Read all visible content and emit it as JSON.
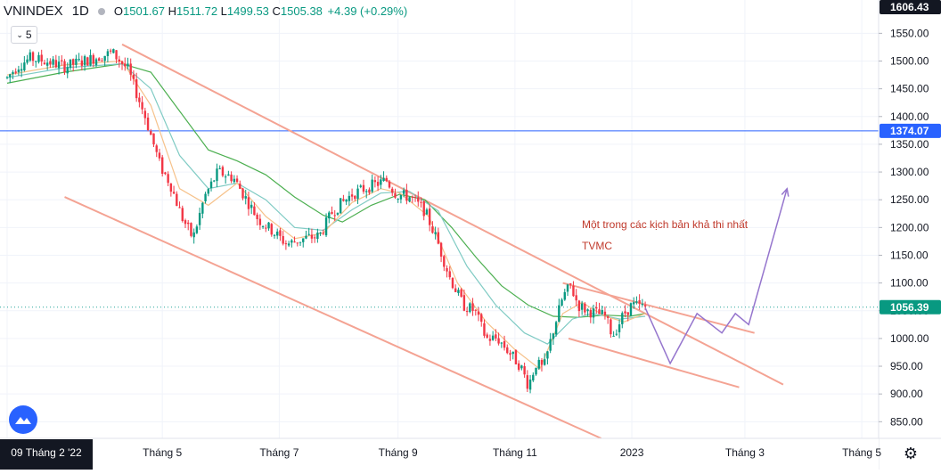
{
  "header": {
    "symbol": "VNINDEX",
    "timeframe": "1D",
    "open_label": "O",
    "open": "1501.67",
    "high_label": "H",
    "high": "1511.72",
    "low_label": "L",
    "low": "1499.53",
    "close_label": "C",
    "close": "1505.38",
    "change": "+4.39 (+0.29%)"
  },
  "indicator_count": "5",
  "annotations": {
    "scenario_text": "Một trong các kịch bản khả thi nhất",
    "author": "TVMC"
  },
  "colors": {
    "up": "#089981",
    "down": "#f23645",
    "channel": "#f4a393",
    "horizontal": "#2962ff",
    "price_dotted": "#26a69a",
    "ma_short": "#f6c28b",
    "ma_mid": "#80cbc4",
    "ma_long": "#4caf50",
    "projection": "#9575cd"
  },
  "chart_data": {
    "type": "candlestick",
    "title": "VNINDEX 1D",
    "y_axis": {
      "min": 820,
      "max": 1610,
      "ticks": [
        850,
        900,
        950,
        1000,
        1050,
        1100,
        1150,
        1200,
        1250,
        1300,
        1350,
        1400,
        1450,
        1500,
        1550
      ],
      "tick_labels": [
        "850.00",
        "900.00",
        "950.00",
        "1000.00",
        "1050.00",
        "1100.00",
        "1150.00",
        "1200.00",
        "1250.00",
        "1300.00",
        "1350.00",
        "1400.00",
        "1450.00",
        "1500.00",
        "1550.00"
      ],
      "price_labels": [
        {
          "value": 1606.43,
          "label": "1606.43",
          "style": "top"
        },
        {
          "value": 1374.07,
          "label": "1374.07",
          "style": "horizontal"
        },
        {
          "value": 1056.39,
          "label": "1056.39",
          "style": "last"
        }
      ]
    },
    "x_axis": {
      "labels": [
        "09 Tháng 2 '22",
        "Tháng 5",
        "Tháng 7",
        "Tháng 9",
        "Tháng 11",
        "2023",
        "Tháng 3",
        "Tháng 5"
      ],
      "label_days": [
        0,
        81,
        142,
        204,
        265,
        326,
        385,
        446
      ],
      "range_days": [
        0,
        452
      ]
    },
    "price_path": [
      [
        0,
        1470
      ],
      [
        5,
        1490
      ],
      [
        12,
        1505
      ],
      [
        20,
        1500
      ],
      [
        30,
        1490
      ],
      [
        42,
        1502
      ],
      [
        55,
        1515
      ],
      [
        63,
        1485
      ],
      [
        72,
        1400
      ],
      [
        80,
        1310
      ],
      [
        85,
        1280
      ],
      [
        91,
        1220
      ],
      [
        97,
        1180
      ],
      [
        103,
        1255
      ],
      [
        110,
        1300
      ],
      [
        118,
        1290
      ],
      [
        125,
        1250
      ],
      [
        131,
        1215
      ],
      [
        138,
        1195
      ],
      [
        146,
        1170
      ],
      [
        155,
        1180
      ],
      [
        163,
        1185
      ],
      [
        170,
        1230
      ],
      [
        180,
        1260
      ],
      [
        190,
        1275
      ],
      [
        198,
        1285
      ],
      [
        203,
        1260
      ],
      [
        210,
        1255
      ],
      [
        218,
        1230
      ],
      [
        224,
        1180
      ],
      [
        231,
        1110
      ],
      [
        238,
        1060
      ],
      [
        244,
        1050
      ],
      [
        250,
        1000
      ],
      [
        256,
        1000
      ],
      [
        262,
        975
      ],
      [
        268,
        950
      ],
      [
        272,
        915
      ],
      [
        276,
        955
      ],
      [
        280,
        945
      ],
      [
        285,
        1015
      ],
      [
        290,
        1075
      ],
      [
        294,
        1095
      ],
      [
        298,
        1060
      ],
      [
        303,
        1050
      ],
      [
        308,
        1045
      ],
      [
        312,
        1040
      ],
      [
        316,
        1005
      ],
      [
        319,
        1025
      ],
      [
        322,
        1045
      ],
      [
        326,
        1060
      ],
      [
        333,
        1056
      ]
    ],
    "ma_short": [
      [
        0,
        1475
      ],
      [
        30,
        1493
      ],
      [
        60,
        1500
      ],
      [
        75,
        1420
      ],
      [
        90,
        1270
      ],
      [
        105,
        1240
      ],
      [
        120,
        1280
      ],
      [
        135,
        1220
      ],
      [
        150,
        1180
      ],
      [
        165,
        1190
      ],
      [
        180,
        1245
      ],
      [
        195,
        1270
      ],
      [
        205,
        1262
      ],
      [
        220,
        1220
      ],
      [
        235,
        1100
      ],
      [
        250,
        1030
      ],
      [
        265,
        980
      ],
      [
        278,
        945
      ],
      [
        290,
        1045
      ],
      [
        300,
        1065
      ],
      [
        312,
        1040
      ],
      [
        322,
        1030
      ],
      [
        333,
        1045
      ]
    ],
    "ma_mid": [
      [
        0,
        1470
      ],
      [
        30,
        1488
      ],
      [
        60,
        1495
      ],
      [
        75,
        1450
      ],
      [
        90,
        1330
      ],
      [
        105,
        1270
      ],
      [
        120,
        1280
      ],
      [
        135,
        1250
      ],
      [
        150,
        1200
      ],
      [
        165,
        1195
      ],
      [
        180,
        1232
      ],
      [
        195,
        1262
      ],
      [
        210,
        1265
      ],
      [
        225,
        1230
      ],
      [
        240,
        1130
      ],
      [
        255,
        1060
      ],
      [
        270,
        1010
      ],
      [
        282,
        990
      ],
      [
        295,
        1035
      ],
      [
        305,
        1045
      ],
      [
        320,
        1035
      ],
      [
        333,
        1040
      ]
    ],
    "ma_long": [
      [
        0,
        1460
      ],
      [
        30,
        1480
      ],
      [
        60,
        1495
      ],
      [
        75,
        1480
      ],
      [
        90,
        1410
      ],
      [
        105,
        1340
      ],
      [
        120,
        1320
      ],
      [
        135,
        1295
      ],
      [
        150,
        1255
      ],
      [
        165,
        1222
      ],
      [
        175,
        1210
      ],
      [
        190,
        1240
      ],
      [
        205,
        1260
      ],
      [
        218,
        1250
      ],
      [
        232,
        1200
      ],
      [
        245,
        1145
      ],
      [
        258,
        1095
      ],
      [
        272,
        1060
      ],
      [
        285,
        1040
      ],
      [
        298,
        1038
      ],
      [
        312,
        1042
      ],
      [
        325,
        1040
      ],
      [
        333,
        1045
      ]
    ],
    "channel_lines": [
      {
        "points": [
          [
            60,
            1530
          ],
          [
            405,
            917
          ]
        ]
      },
      {
        "points": [
          [
            30,
            1255
          ],
          [
            310,
            820
          ]
        ]
      },
      {
        "points": [
          [
            290,
            1100
          ],
          [
            390,
            1010
          ]
        ]
      },
      {
        "points": [
          [
            293,
            1000
          ],
          [
            382,
            912
          ]
        ]
      }
    ],
    "horizontal_line": {
      "value": 1374.07
    },
    "last_price_line": {
      "value": 1056.39
    },
    "projection": [
      [
        333,
        1055
      ],
      [
        346,
        955
      ],
      [
        360,
        1045
      ],
      [
        373,
        1010
      ],
      [
        380,
        1045
      ],
      [
        387,
        1025
      ],
      [
        407,
        1270
      ]
    ]
  }
}
